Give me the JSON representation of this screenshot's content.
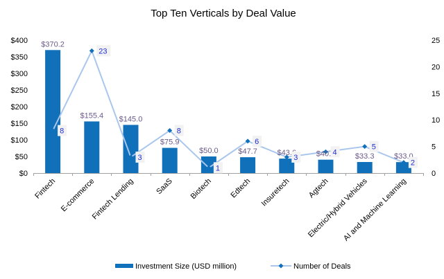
{
  "chart_data": {
    "type": "bar",
    "title": "Top Ten Verticals by Deal Value",
    "categories": [
      "Fintech",
      "E-commerce",
      "Fintech Lending",
      "SaaS",
      "Biotech",
      "Edtech",
      "Insuretech",
      "Agtech",
      "Electric/Hybrid Vehicles",
      "AI and Machine Learning"
    ],
    "series": [
      {
        "name": "Investment Size (USD million)",
        "type": "bar",
        "axis": "left",
        "color": "#1170ba",
        "values": [
          370.2,
          155.4,
          145.0,
          75.9,
          50.0,
          47.7,
          43.6,
          40.3,
          33.3,
          33.0
        ],
        "labels": [
          "$370.2",
          "$155.4",
          "$145.0",
          "$75.9",
          "$50.0",
          "$47.7",
          "$43.6",
          "$40.3",
          "$33.3",
          "$33.0"
        ]
      },
      {
        "name": "Number of Deals",
        "type": "line",
        "axis": "right",
        "color": "#a9c6ec",
        "marker_color": "#1170ba",
        "values": [
          8,
          23,
          3,
          8,
          1,
          6,
          3,
          4,
          5,
          2
        ],
        "labels": [
          "8",
          "23",
          "3",
          "8",
          "1",
          "6",
          "3",
          "4",
          "5",
          "2"
        ]
      }
    ],
    "y_left": {
      "ylim": [
        0,
        400
      ],
      "ticks": [
        0,
        50,
        100,
        150,
        200,
        250,
        300,
        350,
        400
      ],
      "tick_labels": [
        "$0",
        "$50",
        "$100",
        "$150",
        "$200",
        "$250",
        "$300",
        "$350",
        "$400"
      ]
    },
    "y_right": {
      "ylim": [
        0,
        25
      ],
      "ticks": [
        0,
        5,
        10,
        15,
        20,
        25
      ],
      "tick_labels": [
        "0",
        "5",
        "10",
        "15",
        "20",
        "25"
      ]
    },
    "xlabel": "",
    "ylabel": "",
    "grid": false,
    "legend": "bottom"
  }
}
